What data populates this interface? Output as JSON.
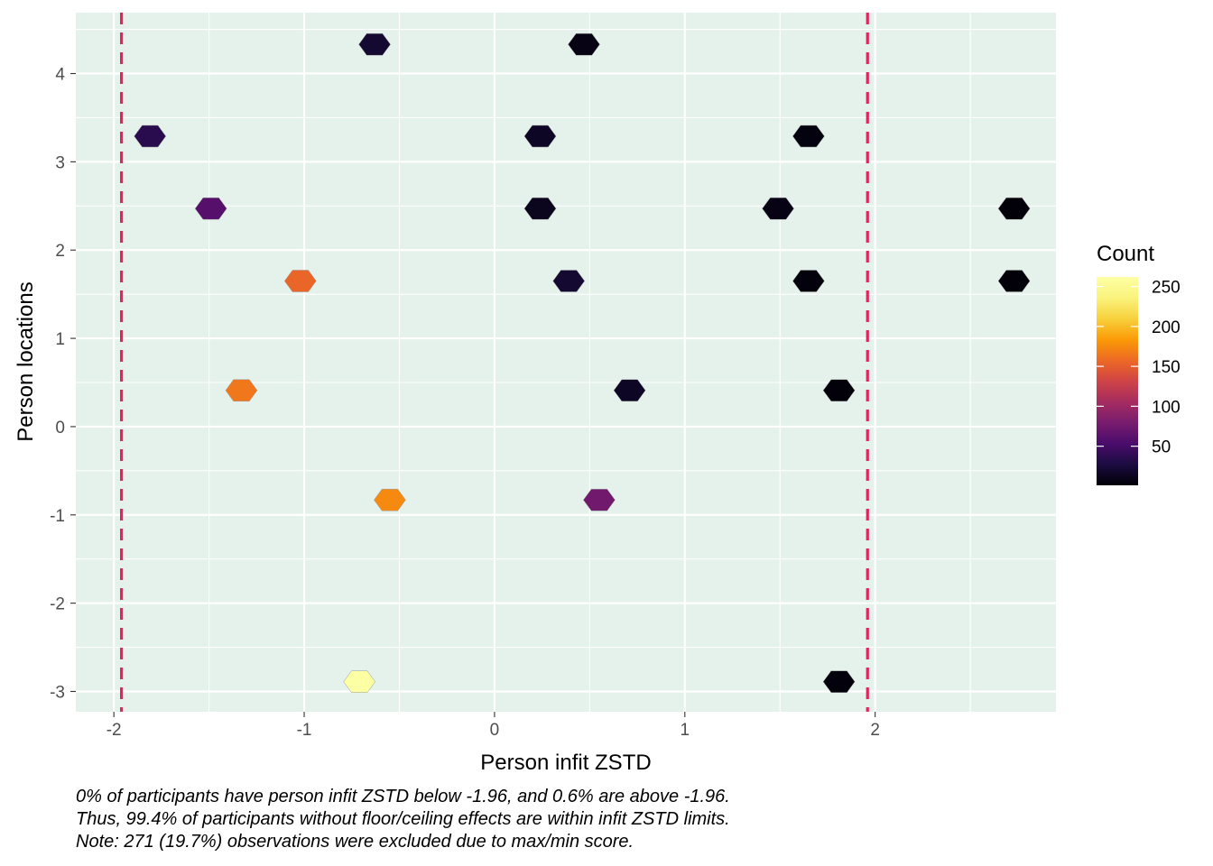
{
  "chart_data": {
    "type": "hexbin",
    "xlabel": "Person infit ZSTD",
    "ylabel": "Person locations",
    "xlim": [
      -2.2,
      2.95
    ],
    "ylim": [
      -3.23,
      4.69
    ],
    "x_ticks": [
      -2,
      -1,
      0,
      1,
      2
    ],
    "y_ticks": [
      -3,
      -2,
      -1,
      0,
      1,
      2,
      3,
      4
    ],
    "grid": true,
    "panel_background": "#e5f1eb",
    "reference_lines": {
      "x": [
        -1.96,
        1.96
      ],
      "color": "#e0245e",
      "style": "dashed"
    },
    "legend": {
      "title": "Count",
      "position": "right",
      "colormap": "inferno",
      "min": 1,
      "max": 262,
      "breaks": [
        50,
        100,
        150,
        200,
        250
      ]
    },
    "bins": [
      {
        "x": -0.63,
        "y": 4.33,
        "count": 20
      },
      {
        "x": 0.47,
        "y": 4.33,
        "count": 8
      },
      {
        "x": -1.81,
        "y": 3.29,
        "count": 35
      },
      {
        "x": 0.24,
        "y": 3.29,
        "count": 15
      },
      {
        "x": 1.65,
        "y": 3.29,
        "count": 6
      },
      {
        "x": -1.49,
        "y": 2.47,
        "count": 60
      },
      {
        "x": 0.24,
        "y": 2.47,
        "count": 12
      },
      {
        "x": 1.49,
        "y": 2.47,
        "count": 8
      },
      {
        "x": 2.73,
        "y": 2.47,
        "count": 3
      },
      {
        "x": -1.02,
        "y": 1.65,
        "count": 155
      },
      {
        "x": 0.39,
        "y": 1.65,
        "count": 20
      },
      {
        "x": 1.65,
        "y": 1.65,
        "count": 4
      },
      {
        "x": 2.73,
        "y": 1.65,
        "count": 3
      },
      {
        "x": -1.33,
        "y": 0.41,
        "count": 165
      },
      {
        "x": 0.71,
        "y": 0.41,
        "count": 15
      },
      {
        "x": 1.81,
        "y": 0.41,
        "count": 3
      },
      {
        "x": -0.55,
        "y": -0.83,
        "count": 175
      },
      {
        "x": 0.55,
        "y": -0.83,
        "count": 75
      },
      {
        "x": -0.71,
        "y": -2.89,
        "count": 262
      },
      {
        "x": 1.81,
        "y": -2.89,
        "count": 4
      }
    ]
  },
  "caption": {
    "line1": "0% of participants have person infit ZSTD below -1.96, and 0.6% are above -1.96.",
    "line2": "Thus, 99.4% of participants without floor/ceiling effects are within infit ZSTD limits.",
    "line3": "Note: 271 (19.7%) observations were excluded due to max/min score."
  }
}
